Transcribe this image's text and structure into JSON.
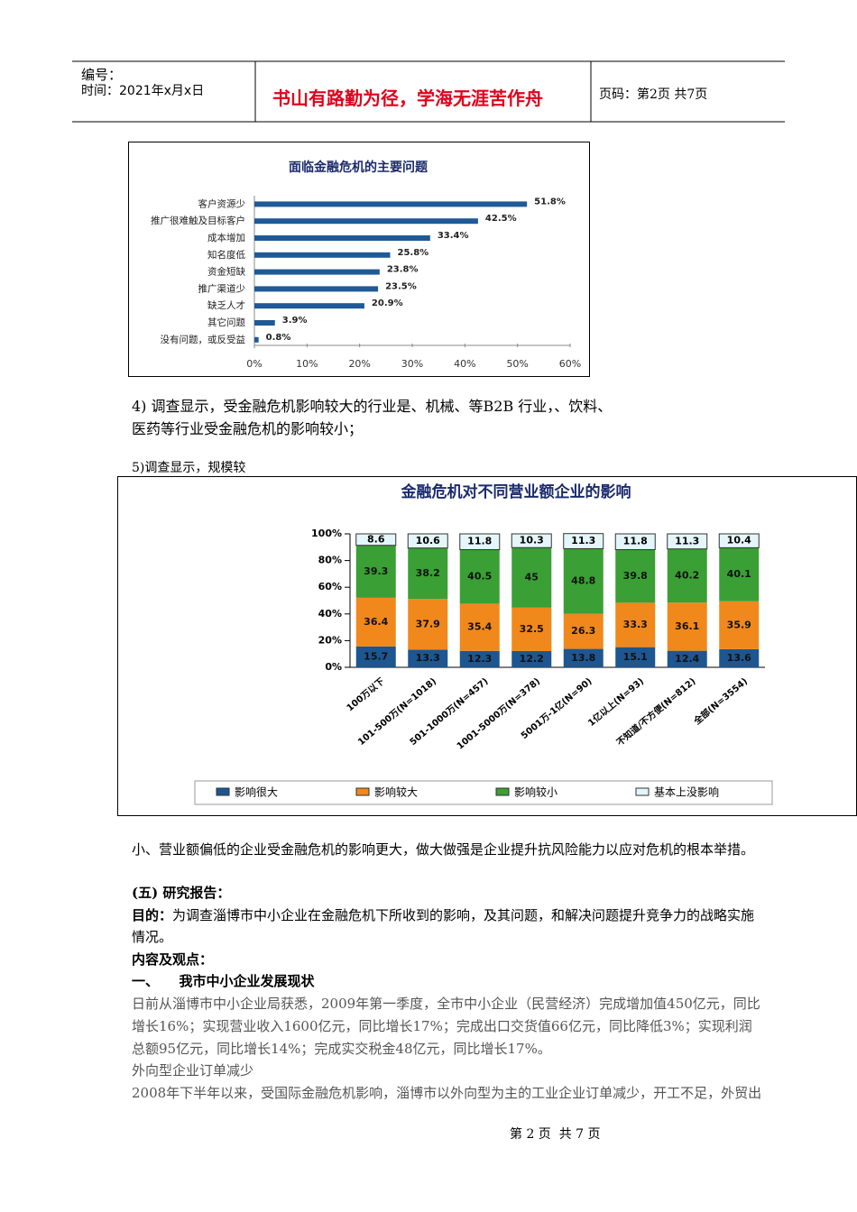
{
  "header": {
    "number": "编号：",
    "time": "时间：2021年x月x日",
    "motto": "书山有路勤为径，学海无涯苦作舟",
    "page": "页码：第2页  共7页"
  },
  "chart_data": [
    {
      "type": "hbar",
      "title": "面临金融危机的主要问题",
      "categories": [
        "客户资源少",
        "推广很难触及目标客户",
        "成本增加",
        "知名度低",
        "资金短缺",
        "推广渠道少",
        "缺乏人才",
        "其它问题",
        "没有问题，或反受益"
      ],
      "values": [
        51.8,
        42.5,
        33.4,
        25.8,
        23.8,
        23.5,
        20.9,
        3.9,
        0.8
      ],
      "value_labels": [
        "51.8%",
        "42.5%",
        "33.4%",
        "25.8%",
        "23.8%",
        "23.5%",
        "20.9%",
        "3.9%",
        "0.8%"
      ],
      "color": "#1f5a96",
      "xlim": [
        0,
        60
      ],
      "xticks": [
        {
          "value": 0,
          "label": "0%"
        },
        {
          "value": 10,
          "label": "10%"
        },
        {
          "value": 20,
          "label": "20%"
        },
        {
          "value": 30,
          "label": "30%"
        },
        {
          "value": 40,
          "label": "40%"
        },
        {
          "value": 50,
          "label": "50%"
        },
        {
          "value": 60,
          "label": "60%"
        }
      ]
    },
    {
      "type": "stacked-bar",
      "title": "金融危机对不同营业额企业的影响",
      "categories": [
        "100万以下",
        "101-500万(N=1018)",
        "501-1000万(N=457)",
        "1001-5000万(N=378)",
        "5001万-1亿(N=90)",
        "1亿以上(N=93)",
        "不知道/不方便(N=812)",
        "全部(N=3554)"
      ],
      "series": [
        {
          "name": "影响很大",
          "color": "#1d5690",
          "values": [
            15.7,
            13.3,
            12.3,
            12.2,
            13.8,
            15.1,
            12.4,
            13.6
          ]
        },
        {
          "name": "影响较大",
          "color": "#f0881c",
          "values": [
            36.4,
            37.9,
            35.4,
            32.5,
            26.3,
            33.3,
            36.1,
            35.9
          ]
        },
        {
          "name": "影响较小",
          "color": "#3a9f34",
          "values": [
            39.3,
            38.2,
            40.5,
            45.0,
            48.8,
            39.8,
            40.2,
            40.1
          ]
        },
        {
          "name": "基本上没影响",
          "color": "#e4f6fa",
          "values": [
            8.6,
            10.6,
            11.8,
            10.3,
            11.3,
            11.8,
            11.3,
            10.4
          ]
        }
      ],
      "ylim": [
        0,
        100
      ],
      "yticks": [
        {
          "value": 0,
          "label": "0%"
        },
        {
          "value": 20,
          "label": "20%"
        },
        {
          "value": 40,
          "label": "40%"
        },
        {
          "value": 60,
          "label": "60%"
        },
        {
          "value": 80,
          "label": "80%"
        },
        {
          "value": 100,
          "label": "100%"
        }
      ]
    }
  ],
  "document": {
    "p4": [
      "4)  调查显示，受金融危机影响较大的行业是、机械、等B2B  行业，、饮料、",
      "医药等行业受金融危机的影响较小；"
    ],
    "p5": "5)调查显示，规模较",
    "p6": "小、营业额偏低的企业受金融危机的影响更大，做大做强是企业提升抗风险能力以应对危机的根本举措。",
    "section": "(五) 研究报告：",
    "purpose_label": "目的：",
    "purpose": [
      "为调查淄博市中小企业在金融危机下所收到的影响，及其问题，和解决问题提升竞争力的战略实施",
      "情况。"
    ],
    "content": "内容及观点：",
    "h1": "一、　　我市中小企业发展现状",
    "p7": [
      "日前从淄博市中小企业局获悉，2009年第一季度，全市中小企业（民营经济）完成增加值450亿元，同比",
      "增长16%；实现营业收入1600亿元，同比增长17%；完成出口交货值66亿元，同比降低3%；实现利润",
      "总额95亿元，同比增长14%；完成实交税金48亿元，同比增长17%。"
    ],
    "h2": "外向型企业订单减少",
    "p8": "2008年下半年以来，受国际金融危机影响，淄博市以外向型为主的工业企业订单减少，开工不足，外贸出",
    "footer": "第 2 页  共 7 页"
  }
}
